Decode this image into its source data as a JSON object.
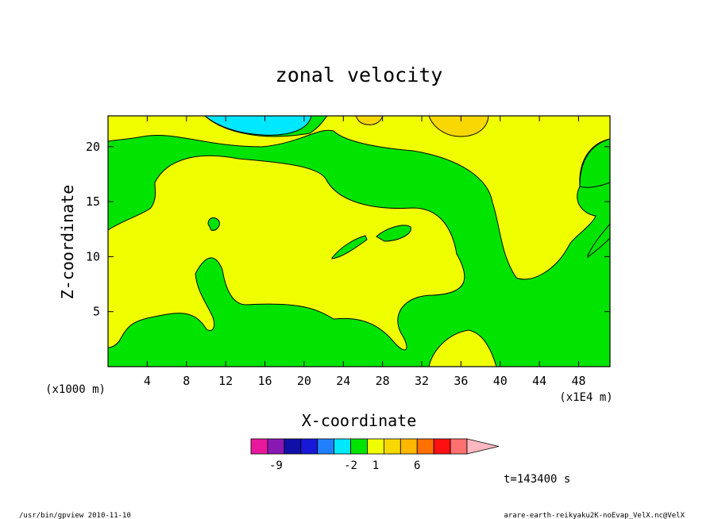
{
  "chart_data": {
    "type": "heatmap",
    "title": "zonal velocity",
    "xlabel": "X-coordinate",
    "ylabel": "Z-coordinate",
    "x_unit_label": "(x1E4 m)",
    "y_unit_label": "(x1000 m)",
    "xlim": [
      0,
      51.2
    ],
    "ylim": [
      0,
      22.8
    ],
    "xticks": [
      4,
      8,
      12,
      16,
      20,
      24,
      28,
      32,
      36,
      40,
      44,
      48
    ],
    "yticks": [
      5,
      10,
      15,
      20
    ],
    "colorbar": {
      "colors": [
        "#e8189c",
        "#8a18b4",
        "#1010a8",
        "#1818d8",
        "#2080ff",
        "#00e8ff",
        "#00e400",
        "#f0ff00",
        "#f8d800",
        "#ffb800",
        "#ff7000",
        "#ff1010",
        "#ff7070",
        "#ffb8c0"
      ],
      "labels": [
        {
          "text": "-9",
          "index": 1.5
        },
        {
          "text": "-2",
          "index": 6
        },
        {
          "text": "1",
          "index": 7.5
        },
        {
          "text": "6",
          "index": 10
        }
      ]
    },
    "time_label": "t=143400 s"
  },
  "footer": {
    "left": "/usr/bin/gpview  2010-11-10",
    "right": "arare-earth-reikyaku2K-noEvap_VelX.nc@VelX"
  }
}
